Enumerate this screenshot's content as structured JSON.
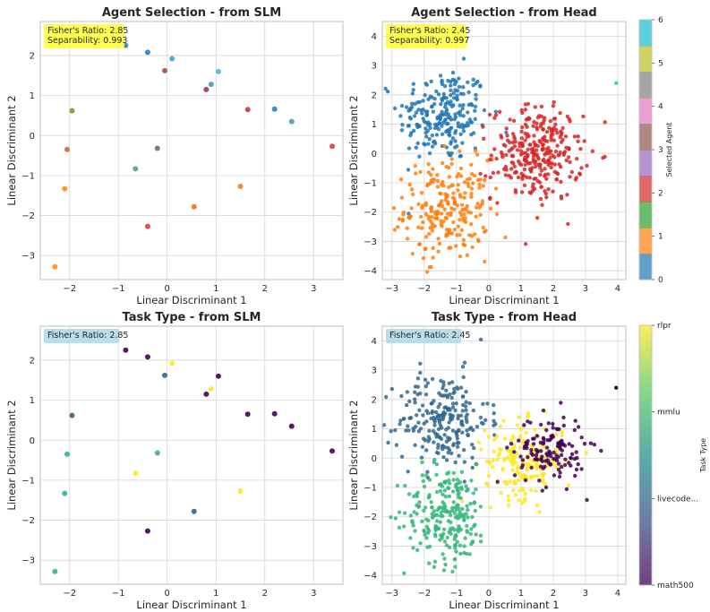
{
  "chart_data": [
    {
      "type": "scatter",
      "panel": "top-left",
      "title": "Agent Selection - from SLM",
      "xlabel": "Linear Discriminant 1",
      "ylabel": "Linear Discriminant 2",
      "xlim": [
        -2.6,
        3.6
      ],
      "ylim": [
        -3.6,
        2.85
      ],
      "xticks": [
        "-2",
        "-1",
        "0",
        "1",
        "2",
        "3"
      ],
      "yticks": [
        "-3",
        "-2",
        "-1",
        "0",
        "1",
        "2"
      ],
      "annotation_lines": [
        "Fisher's Ratio: 2.85",
        "Separability: 0.993"
      ],
      "annotation_color": "#ffff33",
      "grid": true,
      "points": [
        {
          "x": -2.3,
          "y": -3.28,
          "c": "#ff8c1a"
        },
        {
          "x": -2.1,
          "y": -1.33,
          "c": "#ff8c1a"
        },
        {
          "x": -2.05,
          "y": -0.35,
          "c": "#c0713a"
        },
        {
          "x": -1.95,
          "y": 0.62,
          "c": "#8c8c3a"
        },
        {
          "x": -0.85,
          "y": 2.25,
          "c": "#3a7fb8"
        },
        {
          "x": -0.65,
          "y": -0.83,
          "c": "#5e9e84"
        },
        {
          "x": -0.4,
          "y": 2.08,
          "c": "#2b7bbd"
        },
        {
          "x": -0.4,
          "y": -2.27,
          "c": "#e63d2a"
        },
        {
          "x": -0.2,
          "y": -0.32,
          "c": "#7a6a6a"
        },
        {
          "x": -0.05,
          "y": 1.62,
          "c": "#a04a5a"
        },
        {
          "x": 0.1,
          "y": 1.92,
          "c": "#3aa6c9"
        },
        {
          "x": 0.55,
          "y": -1.78,
          "c": "#ff6a1a"
        },
        {
          "x": 0.8,
          "y": 1.15,
          "c": "#a03a4a"
        },
        {
          "x": 0.9,
          "y": 1.28,
          "c": "#4a9ab0"
        },
        {
          "x": 1.05,
          "y": 1.6,
          "c": "#40bcd8"
        },
        {
          "x": 1.5,
          "y": -1.27,
          "c": "#ff7a1a"
        },
        {
          "x": 1.65,
          "y": 0.65,
          "c": "#c83a3a"
        },
        {
          "x": 2.2,
          "y": 0.66,
          "c": "#2b7bbd"
        },
        {
          "x": 2.55,
          "y": 0.35,
          "c": "#4a9ab0"
        },
        {
          "x": 3.38,
          "y": -0.27,
          "c": "#e63d2a"
        }
      ]
    },
    {
      "type": "scatter",
      "panel": "top-right",
      "title": "Agent Selection - from Head",
      "xlabel": "Linear Discriminant 1",
      "ylabel": "Linear Discriminant 2",
      "xlim": [
        -3.3,
        4.25
      ],
      "ylim": [
        -4.3,
        4.5
      ],
      "xticks": [
        "-3",
        "-2",
        "-1",
        "0",
        "1",
        "2",
        "3",
        "4"
      ],
      "yticks": [
        "-4",
        "-3",
        "-2",
        "-1",
        "0",
        "1",
        "2",
        "3",
        "4"
      ],
      "annotation_lines": [
        "Fisher's Ratio: 2.45",
        "Separability: 0.997"
      ],
      "annotation_color": "#ffff33",
      "grid": true,
      "clusters": [
        {
          "name": "Agent 0",
          "color": "#1f77b4",
          "cx": -1.4,
          "cy": 1.3,
          "sx": 0.7,
          "sy": 0.8,
          "n": 230
        },
        {
          "name": "Agent 1",
          "color": "#ff7f0e",
          "cx": -1.3,
          "cy": -1.9,
          "sx": 0.65,
          "sy": 0.85,
          "n": 230
        },
        {
          "name": "Agent 3",
          "color": "#d62728",
          "cx": 1.5,
          "cy": 0.0,
          "sx": 0.7,
          "sy": 0.8,
          "n": 300
        }
      ],
      "extra_points": [
        {
          "x": 3.95,
          "y": 2.4,
          "c": "#4ac6d8"
        }
      ],
      "colorbar": {
        "label": "Selected Agent",
        "range": [
          0,
          6
        ],
        "ticks": [
          "0",
          "1",
          "2",
          "3",
          "4",
          "5",
          "6"
        ],
        "colors": [
          "#1f77b4",
          "#ff7f0e",
          "#2ca02c",
          "#d62728",
          "#9467bd",
          "#8c564b",
          "#e377c2",
          "#7f7f7f",
          "#bcbd22",
          "#17becf"
        ]
      }
    },
    {
      "type": "scatter",
      "panel": "bottom-left",
      "title": "Task Type - from SLM",
      "xlabel": "Linear Discriminant 1",
      "ylabel": "Linear Discriminant 2",
      "xlim": [
        -2.6,
        3.6
      ],
      "ylim": [
        -3.6,
        2.85
      ],
      "xticks": [
        "-2",
        "-1",
        "0",
        "1",
        "2",
        "3"
      ],
      "yticks": [
        "-3",
        "-2",
        "-1",
        "0",
        "1",
        "2"
      ],
      "annotation_lines": [
        "Fisher's Ratio: 2.85"
      ],
      "annotation_color": "#add8e6",
      "grid": true,
      "points": [
        {
          "x": -2.3,
          "y": -3.28,
          "c": "#35b779"
        },
        {
          "x": -2.1,
          "y": -1.33,
          "c": "#35b779"
        },
        {
          "x": -2.05,
          "y": -0.35,
          "c": "#35b779"
        },
        {
          "x": -1.95,
          "y": 0.62,
          "c": "#31688e"
        },
        {
          "x": -0.85,
          "y": 2.25,
          "c": "#440154"
        },
        {
          "x": -0.65,
          "y": -0.83,
          "c": "#fde725"
        },
        {
          "x": -0.4,
          "y": 2.08,
          "c": "#440154"
        },
        {
          "x": -0.4,
          "y": -2.27,
          "c": "#440154"
        },
        {
          "x": -0.2,
          "y": -0.32,
          "c": "#35b779"
        },
        {
          "x": -0.05,
          "y": 1.62,
          "c": "#31688e"
        },
        {
          "x": 0.1,
          "y": 1.92,
          "c": "#fde725"
        },
        {
          "x": 0.55,
          "y": -1.78,
          "c": "#31688e"
        },
        {
          "x": 0.8,
          "y": 1.15,
          "c": "#440154"
        },
        {
          "x": 0.9,
          "y": 1.28,
          "c": "#fde725"
        },
        {
          "x": 1.05,
          "y": 1.6,
          "c": "#440154"
        },
        {
          "x": 1.5,
          "y": -1.27,
          "c": "#fde725"
        },
        {
          "x": 1.65,
          "y": 0.65,
          "c": "#440154"
        },
        {
          "x": 2.2,
          "y": 0.66,
          "c": "#440154"
        },
        {
          "x": 2.55,
          "y": 0.35,
          "c": "#440154"
        },
        {
          "x": 3.38,
          "y": -0.27,
          "c": "#440154"
        }
      ]
    },
    {
      "type": "scatter",
      "panel": "bottom-right",
      "title": "Task Type - from Head",
      "xlabel": "Linear Discriminant 1",
      "ylabel": "Linear Discriminant 2",
      "xlim": [
        -3.3,
        4.25
      ],
      "ylim": [
        -4.3,
        4.5
      ],
      "xticks": [
        "-3",
        "-2",
        "-1",
        "0",
        "1",
        "2",
        "3",
        "4"
      ],
      "yticks": [
        "-4",
        "-3",
        "-2",
        "-1",
        "0",
        "1",
        "2",
        "3",
        "4"
      ],
      "annotation_lines": [
        "Fisher's Ratio: 2.45"
      ],
      "annotation_color": "#add8e6",
      "grid": true,
      "clusters": [
        {
          "name": "livecode...",
          "color": "#31688e",
          "cx": -1.4,
          "cy": 1.3,
          "sx": 0.7,
          "sy": 0.8,
          "n": 230
        },
        {
          "name": "mmlu",
          "color": "#35b779",
          "cx": -1.3,
          "cy": -1.9,
          "sx": 0.65,
          "sy": 0.85,
          "n": 230
        },
        {
          "name": "rlpr",
          "color": "#fde725",
          "cx": 1.1,
          "cy": -0.1,
          "sx": 0.6,
          "sy": 0.65,
          "n": 180
        },
        {
          "name": "math500",
          "color": "#440154",
          "cx": 1.9,
          "cy": 0.3,
          "sx": 0.55,
          "sy": 0.6,
          "n": 140
        }
      ],
      "extra_points": [
        {
          "x": 3.95,
          "y": 2.4,
          "c": "#440154"
        }
      ],
      "colorbar": {
        "label": "Task Type",
        "ticks": [
          "math500",
          "livecode...",
          "mmlu",
          "rlpr"
        ],
        "colors": [
          "#440154",
          "#3b528b",
          "#21918c",
          "#5ec962",
          "#fde725"
        ]
      }
    }
  ]
}
